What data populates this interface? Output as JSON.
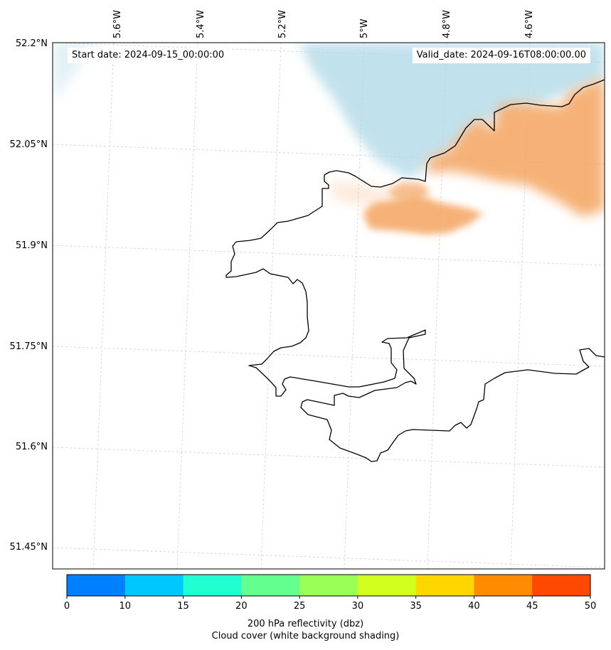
{
  "map": {
    "start_label": "Start date: 2024-09-15_00:00:00",
    "valid_label": "Valid_date: 2024-09-16T08:00:00.00",
    "lon_labels": [
      "5.6°W",
      "5.4°W",
      "5.2°W",
      "5°W",
      "4.8°W",
      "4.6°W"
    ],
    "lat_labels": [
      "52.2°N",
      "52.05°N",
      "51.9°N",
      "51.75°N",
      "51.6°N",
      "51.45°N"
    ],
    "coastline_color": "#000000",
    "gridline_color": "#cccccc"
  },
  "cloud_cover": {
    "color": "#add8e6",
    "description_role": "white background shading"
  },
  "reflectivity": {
    "color": "#f4a460"
  },
  "colorbar": {
    "ticks": [
      "0",
      "10",
      "15",
      "20",
      "25",
      "30",
      "35",
      "40",
      "45",
      "50"
    ],
    "colors": [
      "#0080ff",
      "#00c8ff",
      "#1effd2",
      "#62ff8e",
      "#9aff54",
      "#d2ff1e",
      "#ffd700",
      "#ff8c00",
      "#ff4800"
    ],
    "label_line1": "200 hPa reflectivity (dbz)",
    "label_line2": "Cloud cover (white background shading)"
  }
}
